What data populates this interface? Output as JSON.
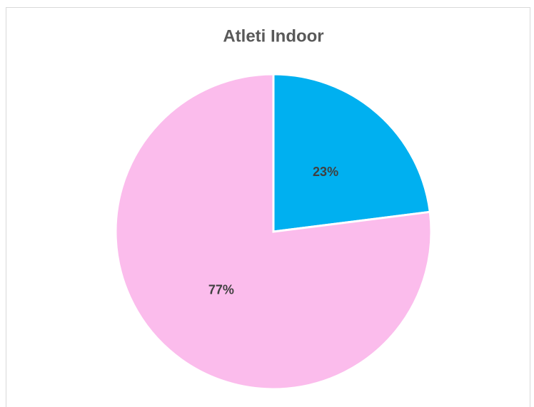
{
  "chart_data": {
    "type": "pie",
    "title": "Atleti Indoor",
    "values": [
      23,
      77
    ],
    "value_labels": [
      "23%",
      "77%"
    ],
    "colors": [
      "#00b0f0",
      "#fbbcec"
    ]
  }
}
